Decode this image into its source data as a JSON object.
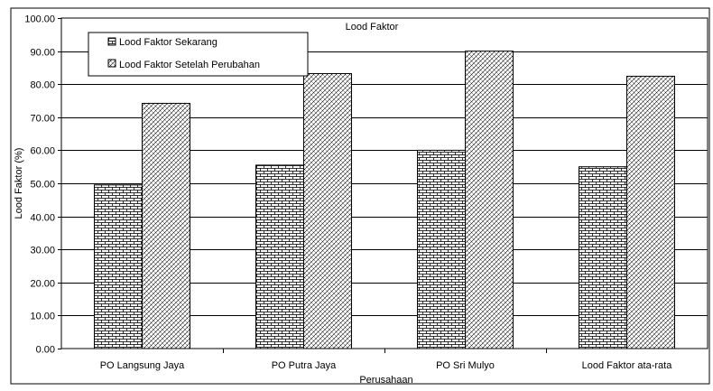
{
  "chart_data": {
    "type": "bar",
    "title": "Lood Faktor",
    "xlabel": "Perusahaan",
    "ylabel": "Lood Faktor (%)",
    "ylim": [
      0,
      100
    ],
    "ytick_step": 10,
    "ytick_labels": [
      "0.00",
      "10.00",
      "20.00",
      "30.00",
      "40.00",
      "50.00",
      "60.00",
      "70.00",
      "80.00",
      "90.00",
      "100.00"
    ],
    "grid": true,
    "legend_position": "top-left",
    "categories": [
      "PO Langsung Jaya",
      "PO Putra Jaya",
      "PO Sri Mulyo",
      "Lood Faktor ata-rata"
    ],
    "series": [
      {
        "name": "Lood Faktor Sekarang",
        "values": [
          49.5,
          55.5,
          60.0,
          55.0
        ],
        "pattern": "brick"
      },
      {
        "name": "Lood Faktor Setelah Perubahan",
        "values": [
          74.2,
          83.2,
          90.0,
          82.4
        ],
        "pattern": "diagonal"
      }
    ]
  }
}
